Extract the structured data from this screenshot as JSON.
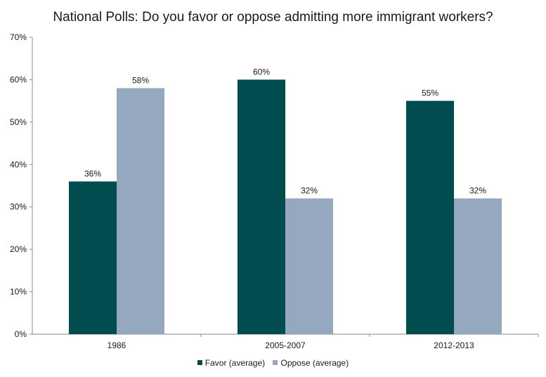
{
  "chart_data": {
    "type": "bar",
    "title": "National Polls: Do you favor or oppose admitting more immigrant workers?",
    "categories": [
      "1986",
      "2005-2007",
      "2012-2013"
    ],
    "series": [
      {
        "name": "Favor (average)",
        "values": [
          36,
          60,
          55
        ],
        "labels": [
          "36%",
          "60%",
          "55%"
        ],
        "color": "#004c4f"
      },
      {
        "name": "Oppose (average)",
        "values": [
          58,
          32,
          32
        ],
        "labels": [
          "58%",
          "32%",
          "32%"
        ],
        "color": "#95a8bf"
      }
    ],
    "yticks": [
      "0%",
      "10%",
      "20%",
      "30%",
      "40%",
      "50%",
      "60%",
      "70%"
    ],
    "ylim": [
      0,
      70
    ],
    "xlabel": "",
    "ylabel": "",
    "legend_position": "bottom"
  }
}
